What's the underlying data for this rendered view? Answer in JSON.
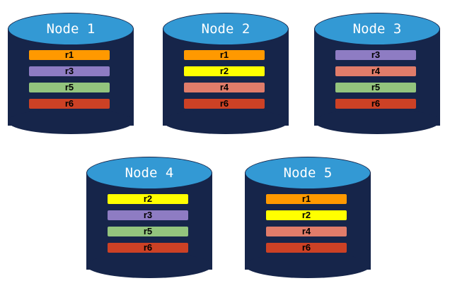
{
  "colors": {
    "r1": "#ff9900",
    "r2": "#ffff00",
    "r3": "#8e7cc3",
    "r4": "#e07c6a",
    "r5": "#93c47d",
    "r6": "#cc4125",
    "cylinder_body": "#16254a",
    "cylinder_top": "#3399d4"
  },
  "nodes": [
    {
      "label": "Node 1",
      "replicas": [
        "r1",
        "r3",
        "r5",
        "r6"
      ]
    },
    {
      "label": "Node 2",
      "replicas": [
        "r1",
        "r2",
        "r4",
        "r6"
      ]
    },
    {
      "label": "Node 3",
      "replicas": [
        "r3",
        "r4",
        "r5",
        "r6"
      ]
    },
    {
      "label": "Node 4",
      "replicas": [
        "r2",
        "r3",
        "r5",
        "r6"
      ]
    },
    {
      "label": "Node 5",
      "replicas": [
        "r1",
        "r2",
        "r4",
        "r6"
      ]
    }
  ]
}
